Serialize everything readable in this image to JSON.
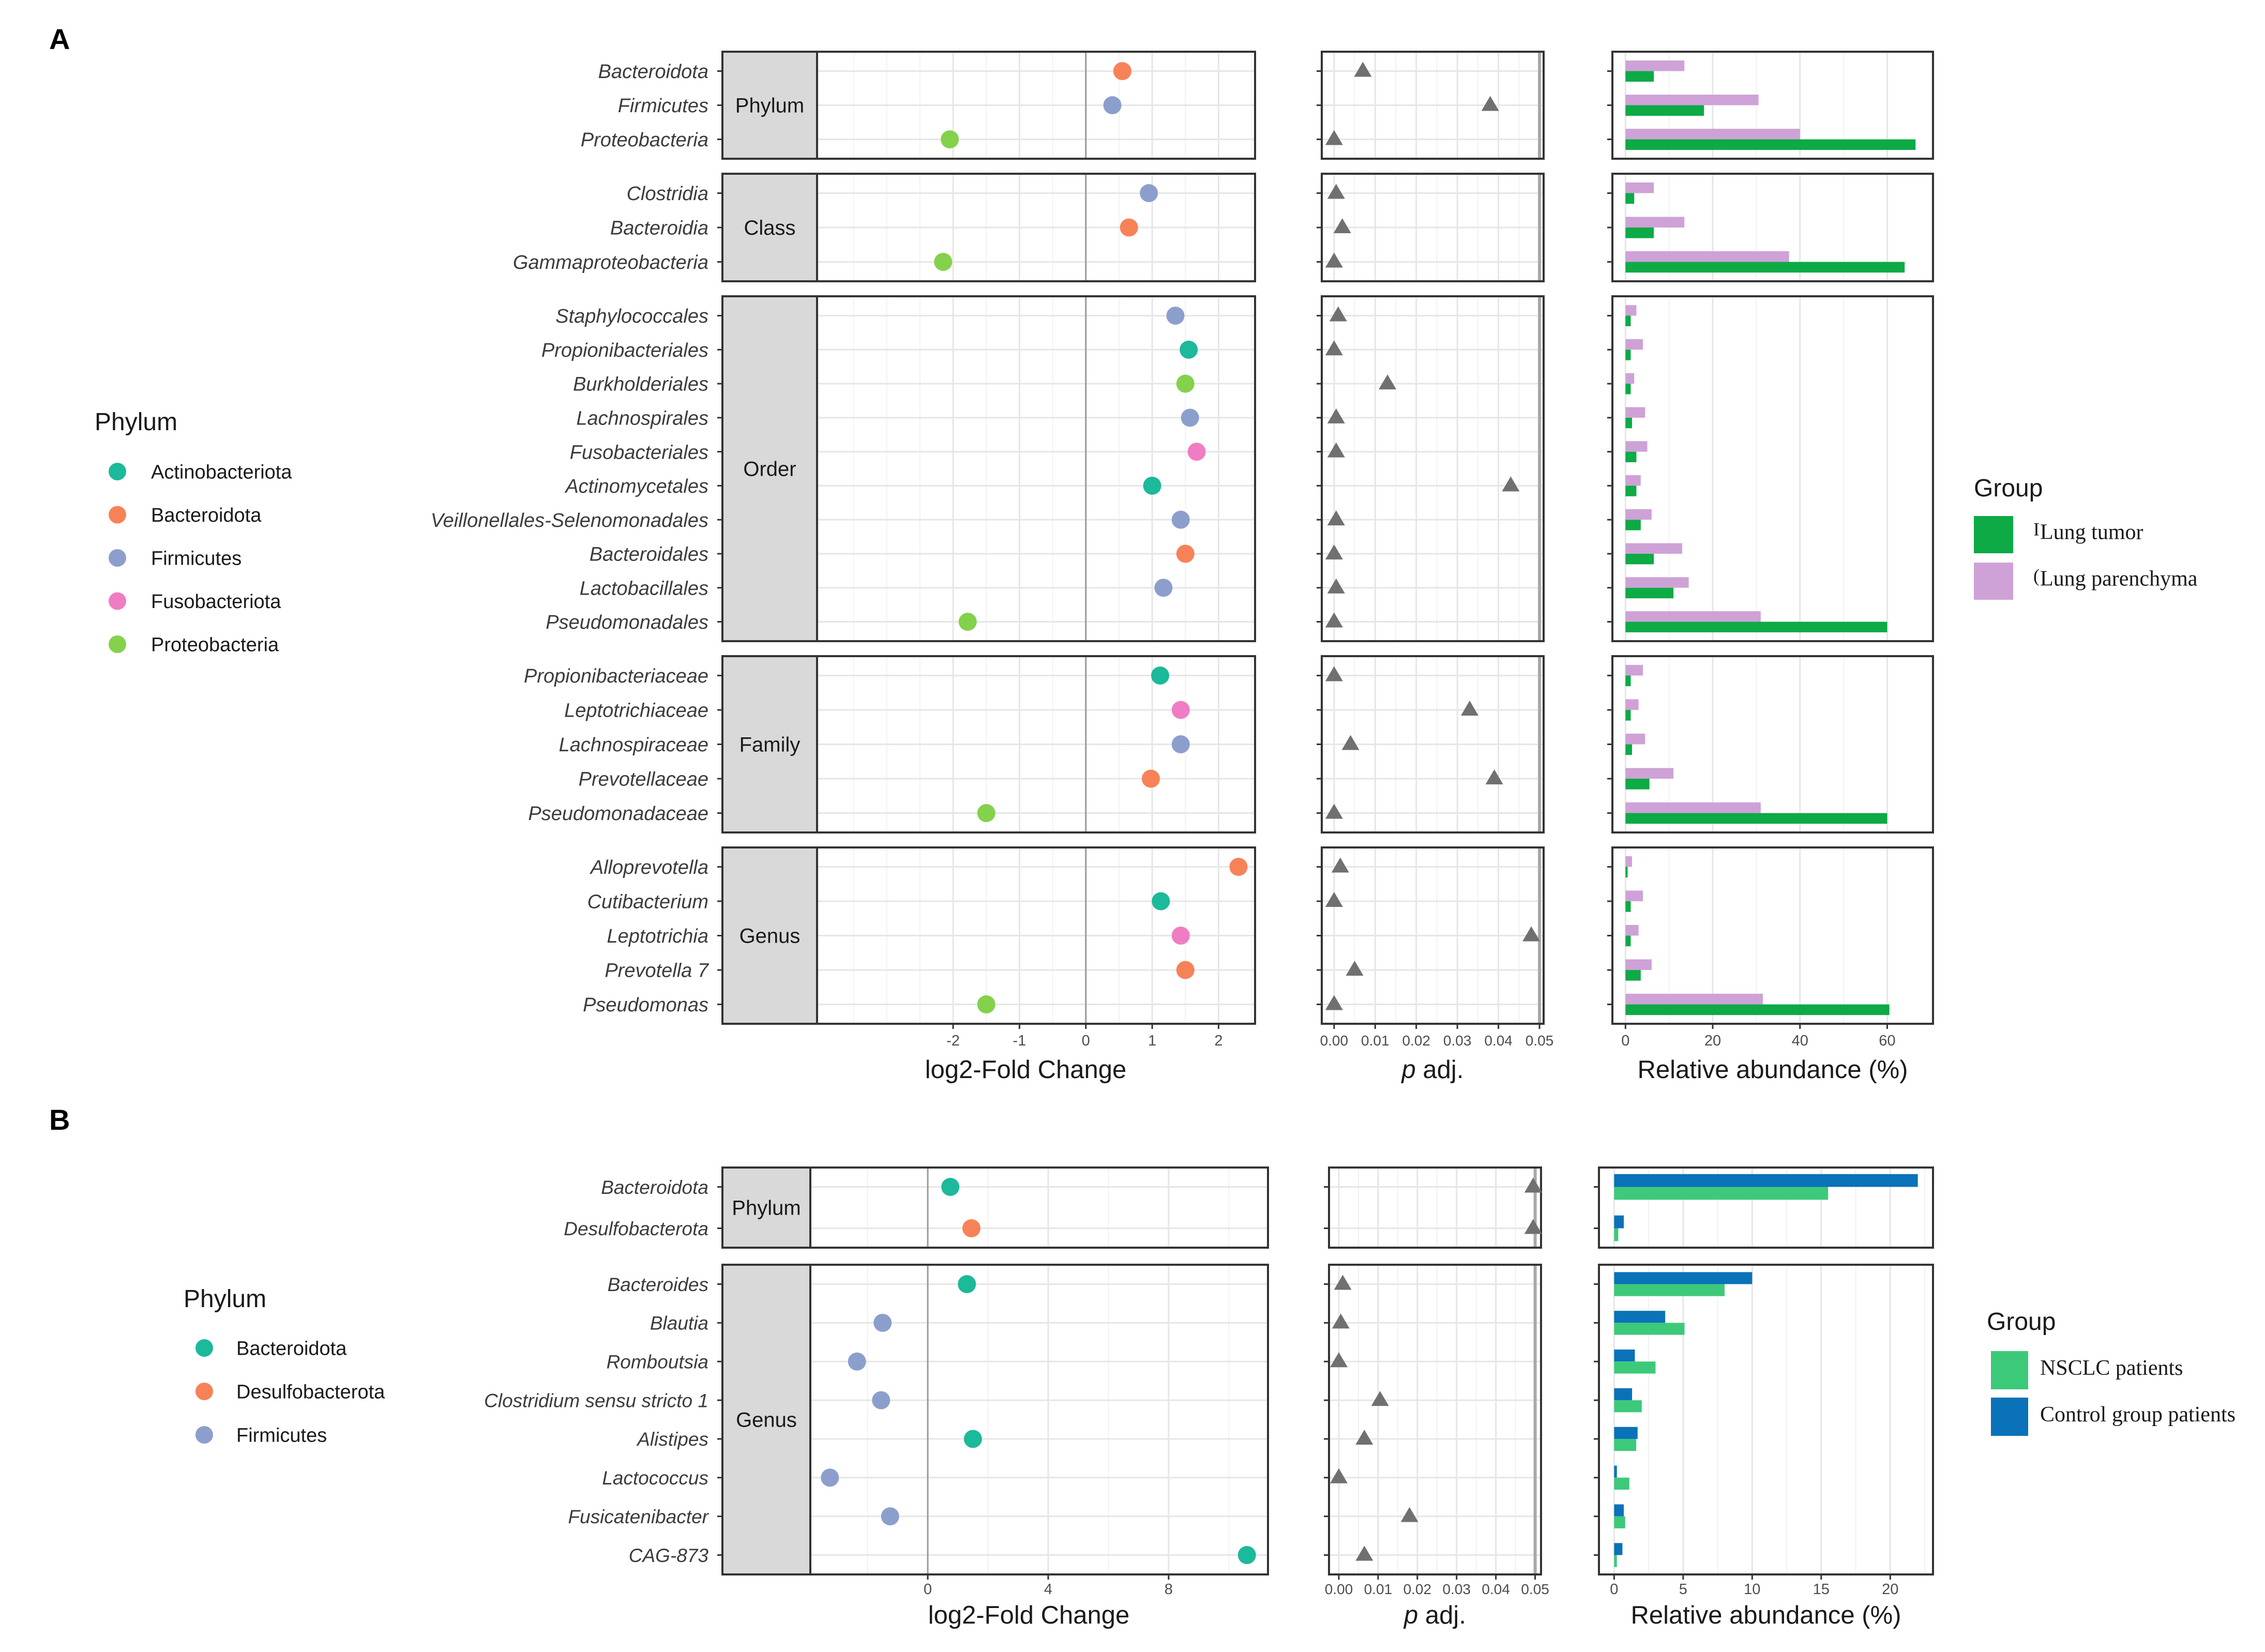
{
  "figure": {
    "panels": [
      {
        "letter": "A",
        "strip_titles": [
          "Phylum",
          "Class",
          "Order",
          "Family",
          "Genus"
        ],
        "colors": {
          "Actinobacteriota": "#1cb99a",
          "Bacteroidota": "#f78258",
          "Firmicutes": "#8c9fcc",
          "Fusobacteriota": "#f07dc3",
          "Proteobacteria": "#84d14b",
          "group_tumor": "#0daa46",
          "group_parenchyma": "#cea2d6",
          "marker": "#707070"
        },
        "legend_phylum": {
          "title": "Phylum",
          "items": [
            "Actinobacteriota",
            "Bacteroidota",
            "Firmicutes",
            "Fusobacteriota",
            "Proteobacteria"
          ]
        },
        "legend_group": {
          "title": "Group",
          "items": [
            {
              "key": "Lung tumor",
              "prefix": "I",
              "label": "Lung tumor",
              "color": "#0daa46"
            },
            {
              "key": "Lung parenchyma",
              "prefix": "(",
              "label": "Lung parenchyma",
              "color": "#cea2d6"
            }
          ]
        },
        "axis_titles": {
          "lfc": "log2-Fold Change",
          "p_italic": "p",
          "p_rest": " adj.",
          "abund": "Relative abundance (%)"
        }
      },
      {
        "letter": "B",
        "strip_titles": [
          "Phylum",
          "Genus"
        ],
        "colors": {
          "Bacteroidota": "#1cb99a",
          "Desulfobacterota": "#f78258",
          "Firmicutes": "#8c9fcc",
          "group_nsclc": "#3dc97a",
          "group_control": "#0a72b8",
          "marker": "#707070"
        },
        "legend_phylum": {
          "title": "Phylum",
          "items": [
            "Bacteroidota",
            "Desulfobacterota",
            "Firmicutes"
          ]
        },
        "legend_group": {
          "title": "Group",
          "items": [
            {
              "key": "NSCLC patients",
              "label": "NSCLC patients",
              "color": "#3dc97a"
            },
            {
              "key": "Control group patients",
              "label": "Control group patients",
              "color": "#0a72b8"
            }
          ]
        },
        "axis_titles": {
          "lfc": "log2-Fold Change",
          "p_italic": "p",
          "p_rest": " adj.",
          "abund": "Relative abundance (%)"
        }
      }
    ]
  },
  "chart_data": [
    {
      "type": "scatter",
      "title": "A",
      "facets": [
        {
          "strip": "Phylum",
          "taxa": [
            {
              "name": "Bacteroidota",
              "phylum": "Bacteroidota",
              "lfc": 0.55,
              "padj": 0.007,
              "abund": {
                "Lung tumor": 6.5,
                "Lung parenchyma": 13.5
              }
            },
            {
              "name": "Firmicutes",
              "phylum": "Firmicutes",
              "lfc": 0.4,
              "padj": 0.038,
              "abund": {
                "Lung tumor": 18,
                "Lung parenchyma": 30.5
              }
            },
            {
              "name": "Proteobacteria",
              "phylum": "Proteobacteria",
              "lfc": -2.05,
              "padj": 0.0,
              "abund": {
                "Lung tumor": 66.5,
                "Lung parenchyma": 40
              }
            }
          ]
        },
        {
          "strip": "Class",
          "taxa": [
            {
              "name": "Clostridia",
              "phylum": "Firmicutes",
              "lfc": 0.95,
              "padj": 0.0005,
              "abund": {
                "Lung tumor": 2,
                "Lung parenchyma": 6.5
              }
            },
            {
              "name": "Bacteroidia",
              "phylum": "Bacteroidota",
              "lfc": 0.65,
              "padj": 0.002,
              "abund": {
                "Lung tumor": 6.5,
                "Lung parenchyma": 13.5
              }
            },
            {
              "name": "Gammaproteobacteria",
              "phylum": "Proteobacteria",
              "lfc": -2.15,
              "padj": 0.0,
              "abund": {
                "Lung tumor": 64,
                "Lung parenchyma": 37.5
              }
            }
          ]
        },
        {
          "strip": "Order",
          "taxa": [
            {
              "name": "Staphylococcales",
              "phylum": "Firmicutes",
              "lfc": 1.35,
              "padj": 0.001,
              "abund": {
                "Lung tumor": 1.2,
                "Lung parenchyma": 2.5
              }
            },
            {
              "name": "Propionibacteriales",
              "phylum": "Actinobacteriota",
              "lfc": 1.55,
              "padj": 0.0,
              "abund": {
                "Lung tumor": 1.2,
                "Lung parenchyma": 4
              }
            },
            {
              "name": "Burkholderiales",
              "phylum": "Proteobacteria",
              "lfc": 1.5,
              "padj": 0.013,
              "abund": {
                "Lung tumor": 1.2,
                "Lung parenchyma": 2
              }
            },
            {
              "name": "Lachnospirales",
              "phylum": "Firmicutes",
              "lfc": 1.57,
              "padj": 0.0005,
              "abund": {
                "Lung tumor": 1.5,
                "Lung parenchyma": 4.5
              }
            },
            {
              "name": "Fusobacteriales",
              "phylum": "Fusobacteriota",
              "lfc": 1.67,
              "padj": 0.0005,
              "abund": {
                "Lung tumor": 2.5,
                "Lung parenchyma": 5
              }
            },
            {
              "name": "Actinomycetales",
              "phylum": "Actinobacteriota",
              "lfc": 1.0,
              "padj": 0.043,
              "abund": {
                "Lung tumor": 2.5,
                "Lung parenchyma": 3.5
              }
            },
            {
              "name": "Veillonellales-Selenomonadales",
              "phylum": "Firmicutes",
              "lfc": 1.43,
              "padj": 0.0005,
              "abund": {
                "Lung tumor": 3.5,
                "Lung parenchyma": 6
              }
            },
            {
              "name": "Bacteroidales",
              "phylum": "Bacteroidota",
              "lfc": 1.5,
              "padj": 0.0,
              "abund": {
                "Lung tumor": 6.5,
                "Lung parenchyma": 13
              }
            },
            {
              "name": "Lactobacillales",
              "phylum": "Firmicutes",
              "lfc": 1.17,
              "padj": 0.0005,
              "abund": {
                "Lung tumor": 11,
                "Lung parenchyma": 14.5
              }
            },
            {
              "name": "Pseudomonadales",
              "phylum": "Proteobacteria",
              "lfc": -1.78,
              "padj": 0.0,
              "abund": {
                "Lung tumor": 60,
                "Lung parenchyma": 31
              }
            }
          ]
        },
        {
          "strip": "Family",
          "taxa": [
            {
              "name": "Propionibacteriaceae",
              "phylum": "Actinobacteriota",
              "lfc": 1.12,
              "padj": 0.0,
              "abund": {
                "Lung tumor": 1.2,
                "Lung parenchyma": 4
              }
            },
            {
              "name": "Leptotrichiaceae",
              "phylum": "Fusobacteriota",
              "lfc": 1.43,
              "padj": 0.033,
              "abund": {
                "Lung tumor": 1.2,
                "Lung parenchyma": 3
              }
            },
            {
              "name": "Lachnospiraceae",
              "phylum": "Firmicutes",
              "lfc": 1.43,
              "padj": 0.004,
              "abund": {
                "Lung tumor": 1.5,
                "Lung parenchyma": 4.5
              }
            },
            {
              "name": "Prevotellaceae",
              "phylum": "Bacteroidota",
              "lfc": 0.98,
              "padj": 0.039,
              "abund": {
                "Lung tumor": 5.5,
                "Lung parenchyma": 11
              }
            },
            {
              "name": "Pseudomonadaceae",
              "phylum": "Proteobacteria",
              "lfc": -1.5,
              "padj": 0.0,
              "abund": {
                "Lung tumor": 60,
                "Lung parenchyma": 31
              }
            }
          ]
        },
        {
          "strip": "Genus",
          "taxa": [
            {
              "name": "Alloprevotella",
              "phylum": "Bacteroidota",
              "lfc": 2.3,
              "padj": 0.0015,
              "abund": {
                "Lung tumor": 0.5,
                "Lung parenchyma": 1.5
              }
            },
            {
              "name": "Cutibacterium",
              "phylum": "Actinobacteriota",
              "lfc": 1.13,
              "padj": 0.0,
              "abund": {
                "Lung tumor": 1.2,
                "Lung parenchyma": 4
              }
            },
            {
              "name": "Leptotrichia",
              "phylum": "Fusobacteriota",
              "lfc": 1.43,
              "padj": 0.048,
              "abund": {
                "Lung tumor": 1.2,
                "Lung parenchyma": 3
              }
            },
            {
              "name": "Prevotella 7",
              "phylum": "Bacteroidota",
              "lfc": 1.5,
              "padj": 0.005,
              "abund": {
                "Lung tumor": 3.5,
                "Lung parenchyma": 6
              }
            },
            {
              "name": "Pseudomonas",
              "phylum": "Proteobacteria",
              "lfc": -1.5,
              "padj": 0.0,
              "abund": {
                "Lung tumor": 60.5,
                "Lung parenchyma": 31.5
              }
            }
          ]
        }
      ],
      "axes": {
        "lfc": {
          "label": "log2-Fold Change",
          "range": [
            -4.05,
            2.55
          ],
          "ticks": [
            -2,
            -1,
            0,
            1,
            2
          ],
          "ref_line": 0
        },
        "padj": {
          "label": "p adj.",
          "range": [
            -0.003,
            0.051
          ],
          "ticks": [
            0.0,
            0.01,
            0.02,
            0.03,
            0.04,
            0.05
          ],
          "tick_labels": [
            "0.00",
            "0.01",
            "0.02",
            "0.03",
            "0.04",
            "0.05"
          ],
          "ref_line": 0.05
        },
        "abund": {
          "label": "Relative abundance (%)",
          "range": [
            -3,
            70.5
          ],
          "ticks": [
            0,
            20,
            40,
            60
          ]
        }
      },
      "groups": [
        "Lung tumor",
        "Lung parenchyma"
      ],
      "grid": true,
      "legend_position": "right"
    },
    {
      "type": "scatter",
      "title": "B",
      "facets": [
        {
          "strip": "Phylum",
          "taxa": [
            {
              "name": "Bacteroidota",
              "phylum": "Bacteroidota",
              "lfc": 0.75,
              "padj": 0.0495,
              "abund": {
                "NSCLC patients": 15.5,
                "Control group patients": 22
              }
            },
            {
              "name": "Desulfobacterota",
              "phylum": "Desulfobacterota",
              "lfc": 1.45,
              "padj": 0.0495,
              "abund": {
                "NSCLC patients": 0.3,
                "Control group patients": 0.7
              }
            }
          ]
        },
        {
          "strip": "Genus",
          "taxa": [
            {
              "name": "Bacteroides",
              "phylum": "Bacteroidota",
              "lfc": 1.3,
              "padj": 0.001,
              "abund": {
                "NSCLC patients": 8,
                "Control group patients": 10
              }
            },
            {
              "name": "Blautia",
              "phylum": "Firmicutes",
              "lfc": -1.5,
              "padj": 0.0005,
              "abund": {
                "NSCLC patients": 5.1,
                "Control group patients": 3.7
              }
            },
            {
              "name": "Romboutsia",
              "phylum": "Firmicutes",
              "lfc": -2.35,
              "padj": 0.0,
              "abund": {
                "NSCLC patients": 3,
                "Control group patients": 1.5
              }
            },
            {
              "name": "Clostridium sensu stricto 1",
              "phylum": "Firmicutes",
              "lfc": -1.55,
              "padj": 0.0105,
              "abund": {
                "NSCLC patients": 2,
                "Control group patients": 1.3
              }
            },
            {
              "name": "Alistipes",
              "phylum": "Bacteroidota",
              "lfc": 1.5,
              "padj": 0.0065,
              "abund": {
                "NSCLC patients": 1.6,
                "Control group patients": 1.7
              }
            },
            {
              "name": "Lactococcus",
              "phylum": "Firmicutes",
              "lfc": -3.25,
              "padj": 0.0,
              "abund": {
                "NSCLC patients": 1.1,
                "Control group patients": 0.2
              }
            },
            {
              "name": "Fusicatenibacter",
              "phylum": "Firmicutes",
              "lfc": -1.25,
              "padj": 0.018,
              "abund": {
                "NSCLC patients": 0.8,
                "Control group patients": 0.7
              }
            },
            {
              "name": "CAG-873",
              "phylum": "Bacteroidota",
              "lfc": 10.6,
              "padj": 0.0065,
              "abund": {
                "NSCLC patients": 0.2,
                "Control group patients": 0.6
              }
            }
          ]
        }
      ],
      "axes": {
        "lfc": {
          "label": "log2-Fold Change",
          "range": [
            -3.9,
            11.3
          ],
          "ticks": [
            0,
            4,
            8
          ],
          "ref_line": 0
        },
        "padj": {
          "label": "p adj.",
          "range": [
            -0.0025,
            0.0515
          ],
          "ticks": [
            0.0,
            0.01,
            0.02,
            0.03,
            0.04,
            0.05
          ],
          "tick_labels": [
            "0.00",
            "0.01",
            "0.02",
            "0.03",
            "0.04",
            "0.05"
          ],
          "ref_line": 0.05
        },
        "abund": {
          "label": "Relative abundance (%)",
          "range": [
            -1.1,
            23.1
          ],
          "ticks": [
            0,
            5,
            10,
            15,
            20
          ]
        }
      },
      "groups": [
        "NSCLC patients",
        "Control group patients"
      ],
      "grid": true,
      "legend_position": "right"
    }
  ]
}
